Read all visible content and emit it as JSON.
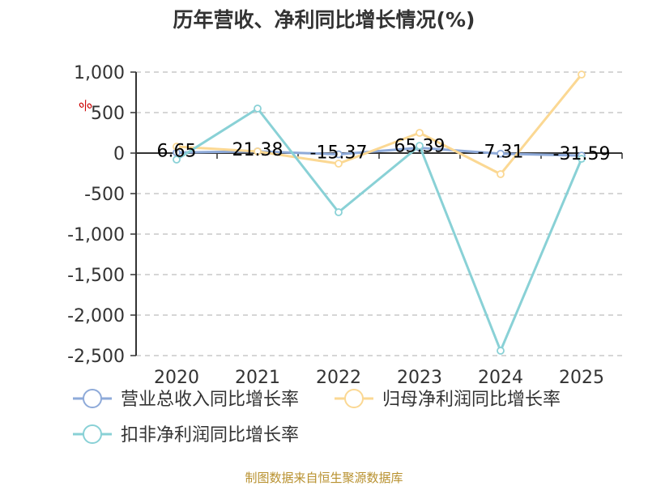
{
  "chart_data": {
    "type": "line",
    "title": "历年营收、净利同比增长情况(%)",
    "ylabel": "%",
    "categories": [
      "2020",
      "2021",
      "2022",
      "2023",
      "2024",
      "2025"
    ],
    "ylim": [
      -2500,
      1000
    ],
    "yticks": [
      1000,
      500,
      0,
      -500,
      -1000,
      -1500,
      -2000,
      -2500
    ],
    "ytick_labels": [
      "1,000",
      "500",
      "0",
      "-500",
      "-1,000",
      "-1,500",
      "-2,000",
      "-2,500"
    ],
    "grid": true,
    "legend_position": "bottom",
    "series": [
      {
        "name": "营业总收入同比增长率",
        "color": "#8eaad9",
        "values": [
          6.65,
          21.38,
          -15.37,
          65.39,
          -7.31,
          -31.59
        ],
        "labels": [
          "6.65",
          "21.38",
          "-15.37",
          "65.39",
          "-7.31",
          "-31.59"
        ]
      },
      {
        "name": "归母净利润同比增长率",
        "color": "#fbd893",
        "values": [
          80,
          20,
          -130,
          250,
          -260,
          970
        ]
      },
      {
        "name": "扣非净利润同比增长率",
        "color": "#89d1d6",
        "values": [
          -80,
          550,
          -730,
          90,
          -2440,
          -70
        ]
      }
    ]
  },
  "source": "制图数据来自恒生聚源数据库"
}
